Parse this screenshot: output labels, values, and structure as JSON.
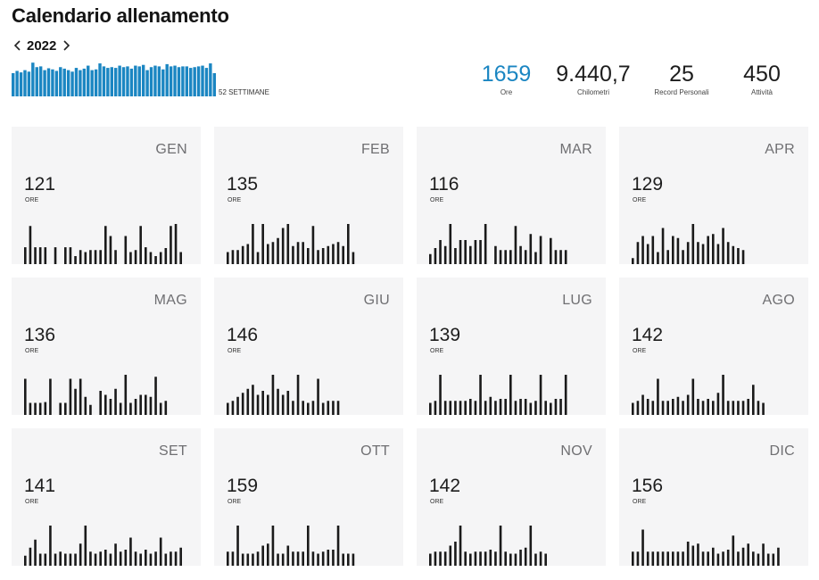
{
  "page": {
    "title": "Calendario allenamento"
  },
  "year_nav": {
    "year": "2022",
    "prev_icon": "chevron-left-icon",
    "next_icon": "chevron-right-icon"
  },
  "weekly": {
    "label": "52 SETTIMANE",
    "color": "#1b86c2",
    "values": [
      0.62,
      0.68,
      0.64,
      0.7,
      0.66,
      0.9,
      0.78,
      0.8,
      0.7,
      0.75,
      0.72,
      0.68,
      0.78,
      0.74,
      0.7,
      0.66,
      0.76,
      0.7,
      0.74,
      0.82,
      0.7,
      0.72,
      0.88,
      0.8,
      0.76,
      0.78,
      0.76,
      0.82,
      0.78,
      0.8,
      0.74,
      0.82,
      0.8,
      0.84,
      0.7,
      0.78,
      0.82,
      0.8,
      0.72,
      0.86,
      0.8,
      0.82,
      0.78,
      0.8,
      0.8,
      0.76,
      0.78,
      0.8,
      0.82,
      0.76,
      0.88,
      0.62
    ]
  },
  "summary": [
    {
      "value": "1659",
      "label": "Ore",
      "accent": true
    },
    {
      "value": "9.440,7",
      "label": "Chilometri",
      "accent": false
    },
    {
      "value": "25",
      "label": "Record Personali",
      "accent": false
    },
    {
      "value": "450",
      "label": "Attività",
      "accent": false
    }
  ],
  "month_unit": "ORE",
  "months": [
    {
      "name": "GEN",
      "hours": "121",
      "bars": [
        0.42,
        0.95,
        0.42,
        0.42,
        0.42,
        0,
        0.42,
        0,
        0.42,
        0.42,
        0.2,
        0.35,
        0.3,
        0.35,
        0.35,
        0.35,
        0.95,
        0.7,
        0.35,
        0,
        0.7,
        0.3,
        0.35,
        0.95,
        0.42,
        0.3,
        0.2,
        0.3,
        0.4,
        0.95,
        1.0,
        0.3
      ]
    },
    {
      "name": "FEB",
      "hours": "135",
      "bars": [
        0.3,
        0.35,
        0.35,
        0.45,
        0.5,
        1.0,
        0.3,
        1.0,
        0.5,
        0.55,
        0.65,
        0.9,
        1.0,
        0.45,
        0.55,
        0.55,
        0.4,
        0.95,
        0.35,
        0.4,
        0.45,
        0.5,
        0.55,
        0.45,
        1.0,
        0.3
      ]
    },
    {
      "name": "MAR",
      "hours": "116",
      "bars": [
        0.25,
        0.4,
        0.6,
        0.45,
        1.0,
        0.4,
        0.6,
        0.6,
        0.45,
        0.6,
        0.6,
        1.0,
        0,
        0.45,
        0.35,
        0.35,
        0.35,
        0.95,
        0.45,
        0.35,
        0.75,
        0.3,
        0.7,
        0,
        0.65,
        0.35,
        0.35,
        0.35
      ]
    },
    {
      "name": "APR",
      "hours": "129",
      "bars": [
        0.15,
        0.55,
        0.7,
        0.5,
        0.7,
        0.3,
        0.9,
        0.35,
        0.7,
        0.65,
        0.35,
        0.55,
        1.0,
        0.55,
        0.5,
        0.7,
        0.75,
        0.5,
        0.9,
        0.55,
        0.45,
        0.4,
        0.35
      ]
    },
    {
      "name": "MAG",
      "hours": "136",
      "bars": [
        0.9,
        0.3,
        0.3,
        0.3,
        0.32,
        0.9,
        0,
        0.3,
        0.3,
        0.9,
        0.65,
        0.9,
        0.45,
        0.25,
        0,
        0.6,
        0.5,
        0.4,
        0.65,
        0.3,
        1.0,
        0.3,
        0.4,
        0.5,
        0.5,
        0.45,
        0.95,
        0.3,
        0.35
      ]
    },
    {
      "name": "GIU",
      "hours": "146",
      "bars": [
        0.3,
        0.35,
        0.45,
        0.55,
        0.65,
        0.75,
        0.5,
        0.6,
        0.5,
        1.0,
        0.65,
        0.5,
        0.6,
        0.35,
        1.0,
        0.35,
        0.3,
        0.35,
        0.9,
        0.3,
        0.35,
        0.35,
        0.35
      ]
    },
    {
      "name": "LUG",
      "hours": "139",
      "bars": [
        0.3,
        0.35,
        1.0,
        0.35,
        0.35,
        0.35,
        0.35,
        0.35,
        0.4,
        0.35,
        1.0,
        0.35,
        0.45,
        0.35,
        0.4,
        0.4,
        1.0,
        0.35,
        0.4,
        0.4,
        0.3,
        0.35,
        1.0,
        0.35,
        0.3,
        0.4,
        0.4,
        1.0
      ]
    },
    {
      "name": "AGO",
      "hours": "142",
      "bars": [
        0.3,
        0.35,
        0.5,
        0.4,
        0.35,
        0.9,
        0.35,
        0.35,
        0.4,
        0.45,
        0.35,
        0.5,
        0.9,
        0.4,
        0.35,
        0.4,
        0.35,
        0.55,
        1.0,
        0.35,
        0.35,
        0.35,
        0.35,
        0.4,
        0.75,
        0.35,
        0.3
      ]
    },
    {
      "name": "SET",
      "hours": "141",
      "bars": [
        0.25,
        0.45,
        0.65,
        0.3,
        0.3,
        1.0,
        0.3,
        0.35,
        0.3,
        0.3,
        0.3,
        0.55,
        1.0,
        0.35,
        0.3,
        0.35,
        0.4,
        0.3,
        0.55,
        0.35,
        0.4,
        0.7,
        0.35,
        0.3,
        0.4,
        0.3,
        0.35,
        0.7,
        0.3,
        0.35,
        0.35,
        0.45,
        0.45
      ]
    },
    {
      "name": "OTT",
      "hours": "159",
      "bars": [
        0.35,
        0.35,
        1.0,
        0.3,
        0.3,
        0.3,
        0.35,
        0.5,
        0.55,
        1.0,
        0.3,
        0.3,
        0.5,
        0.35,
        0.35,
        0.35,
        1.0,
        0.35,
        0.3,
        0.35,
        0.4,
        0.4,
        1.0,
        0.3,
        0.3,
        0.3
      ]
    },
    {
      "name": "NOV",
      "hours": "142",
      "bars": [
        0.3,
        0.35,
        0.35,
        0.35,
        0.5,
        0.6,
        1.0,
        0.35,
        0.3,
        0.35,
        0.35,
        0.35,
        0.4,
        0.35,
        1.0,
        0.35,
        0.3,
        0.3,
        0.4,
        0.45,
        1.0,
        0.3,
        0.35,
        0.3
      ]
    },
    {
      "name": "DIC",
      "hours": "156",
      "bars": [
        0.35,
        0.35,
        0.9,
        0.35,
        0.35,
        0.35,
        0.35,
        0.35,
        0.35,
        0.35,
        0.35,
        0.6,
        0.5,
        0.55,
        0.35,
        0.35,
        0.45,
        0.3,
        0.35,
        0.4,
        0.75,
        0.35,
        0.45,
        0.55,
        0.35,
        0.3,
        0.55,
        0.3,
        0.3,
        0.45
      ]
    }
  ]
}
